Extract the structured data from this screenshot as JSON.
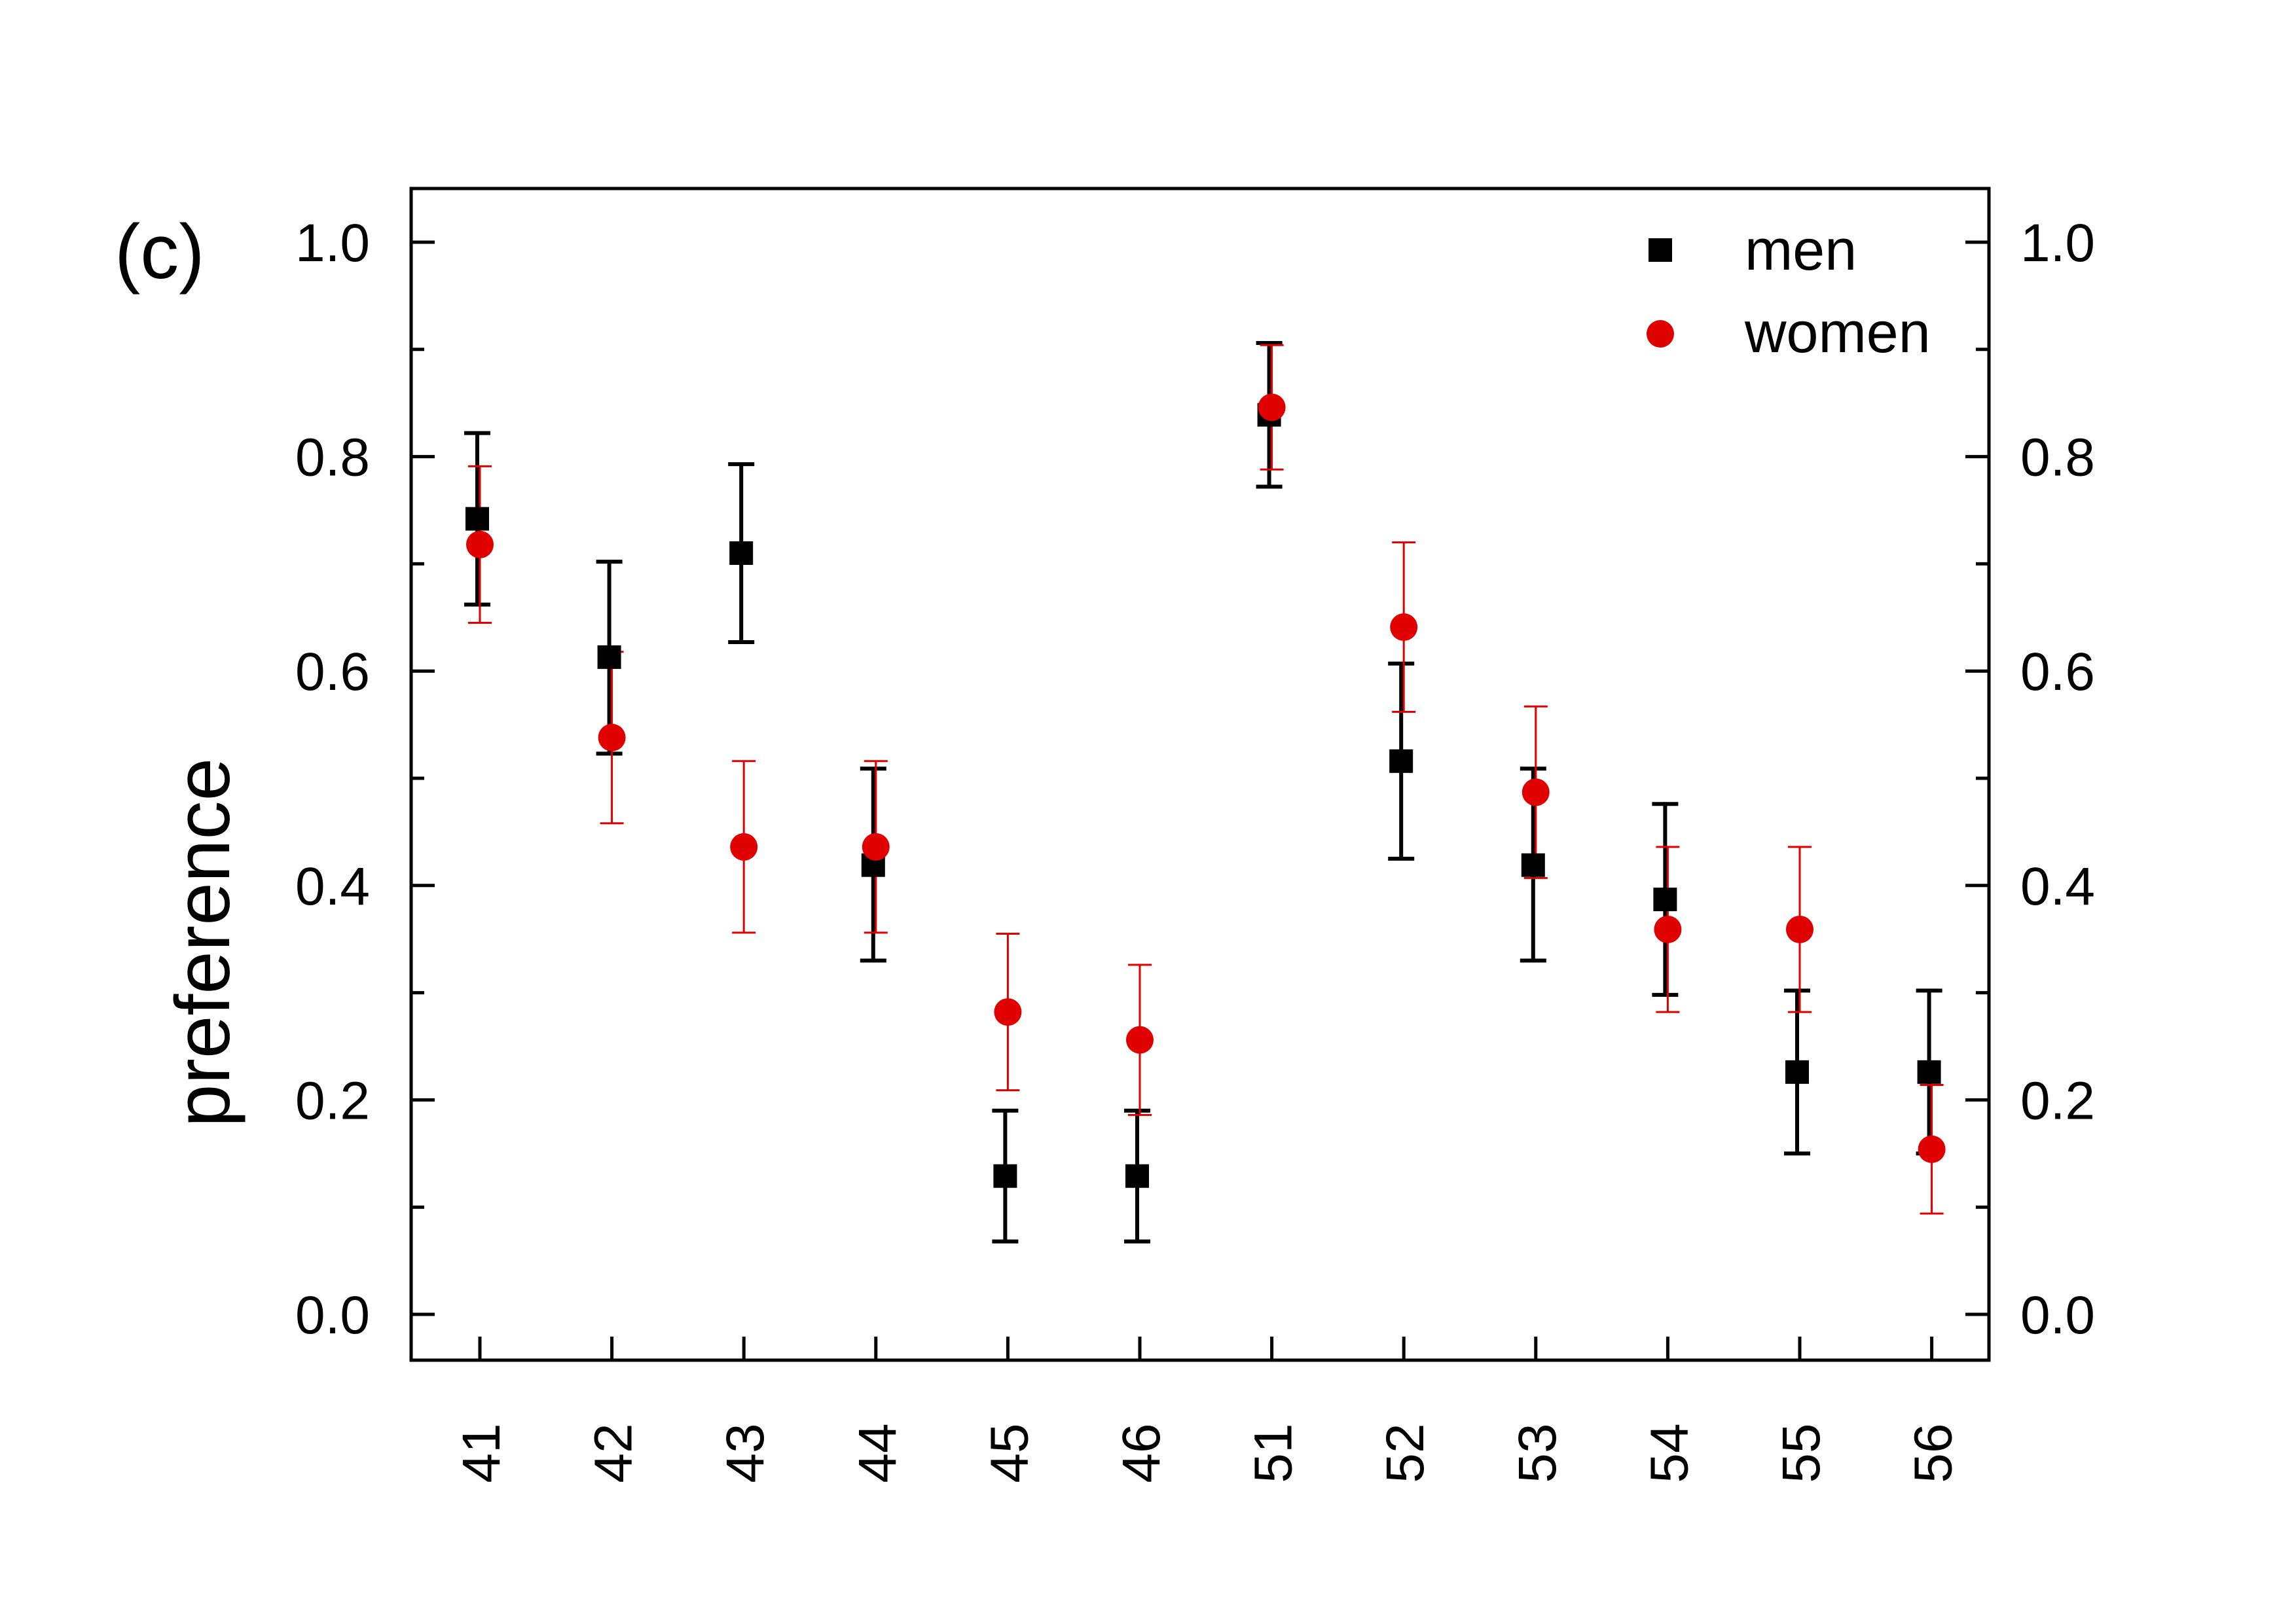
{
  "chart_data": {
    "type": "scatter",
    "panel_label": "(c)",
    "xlabel": "",
    "ylabel": "preference",
    "categories": [
      "41",
      "42",
      "43",
      "44",
      "45",
      "46",
      "51",
      "52",
      "53",
      "54",
      "55",
      "56"
    ],
    "ylim": [
      -0.05,
      1.05
    ],
    "yticks": [
      0.0,
      0.2,
      0.4,
      0.6,
      0.8,
      1.0
    ],
    "ytick_labels": [
      "0.0",
      "0.2",
      "0.4",
      "0.6",
      "0.8",
      "1.0"
    ],
    "yminor_ticks": [
      0.1,
      0.3,
      0.5,
      0.7,
      0.9
    ],
    "legend_position": "top-right",
    "series": [
      {
        "name": "men",
        "marker": "square",
        "color": "#000000",
        "values": [
          0.742,
          0.613,
          0.71,
          0.419,
          0.129,
          0.129,
          0.839,
          0.516,
          0.419,
          0.387,
          0.226,
          0.226
        ],
        "err_low": [
          0.662,
          0.523,
          0.627,
          0.33,
          0.068,
          0.068,
          0.772,
          0.425,
          0.33,
          0.298,
          0.15,
          0.15
        ],
        "err_high": [
          0.822,
          0.702,
          0.793,
          0.509,
          0.19,
          0.19,
          0.906,
          0.607,
          0.509,
          0.476,
          0.302,
          0.302
        ]
      },
      {
        "name": "women",
        "marker": "circle",
        "color": "#e00000",
        "values": [
          0.718,
          0.538,
          0.436,
          0.436,
          0.282,
          0.256,
          0.846,
          0.641,
          0.487,
          0.359,
          0.359,
          0.154
        ],
        "err_low": [
          0.645,
          0.458,
          0.356,
          0.356,
          0.209,
          0.186,
          0.788,
          0.562,
          0.407,
          0.282,
          0.282,
          0.094
        ],
        "err_high": [
          0.791,
          0.618,
          0.516,
          0.516,
          0.355,
          0.326,
          0.904,
          0.72,
          0.567,
          0.436,
          0.436,
          0.214
        ]
      }
    ]
  }
}
